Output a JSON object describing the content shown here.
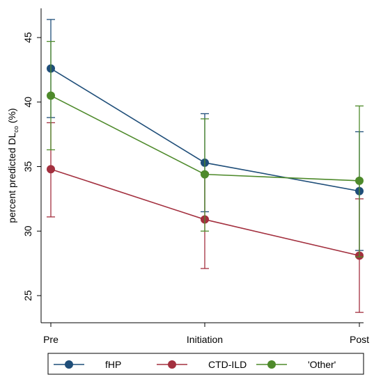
{
  "chart_data": {
    "type": "line",
    "categories": [
      "Pre",
      "Initiation",
      "Post"
    ],
    "ylabel": "percent predicted DL",
    "ylabel_subscript": "co",
    "ylabel_suffix": " (%)",
    "yticks": [
      "25",
      "30",
      "35",
      "40",
      "45"
    ],
    "ylim": [
      22.5,
      47.5
    ],
    "grid": false,
    "legend_position": "bottom",
    "series": [
      {
        "name": "fHP",
        "color": "#1f4e79",
        "values": [
          42.6,
          35.3,
          33.1
        ],
        "ci_low": [
          38.8,
          31.5,
          28.5
        ],
        "ci_high": [
          46.4,
          39.1,
          37.7
        ]
      },
      {
        "name": "CTD-ILD",
        "color": "#a3303f",
        "values": [
          34.8,
          30.9,
          28.1
        ],
        "ci_low": [
          31.1,
          27.1,
          23.7
        ],
        "ci_high": [
          38.4,
          34.5,
          32.5
        ]
      },
      {
        "name": "'Other'",
        "color": "#4e8a2b",
        "values": [
          40.5,
          34.4,
          33.9
        ],
        "ci_low": [
          36.3,
          30.0,
          28.0
        ],
        "ci_high": [
          44.7,
          38.7,
          39.7
        ]
      }
    ]
  }
}
